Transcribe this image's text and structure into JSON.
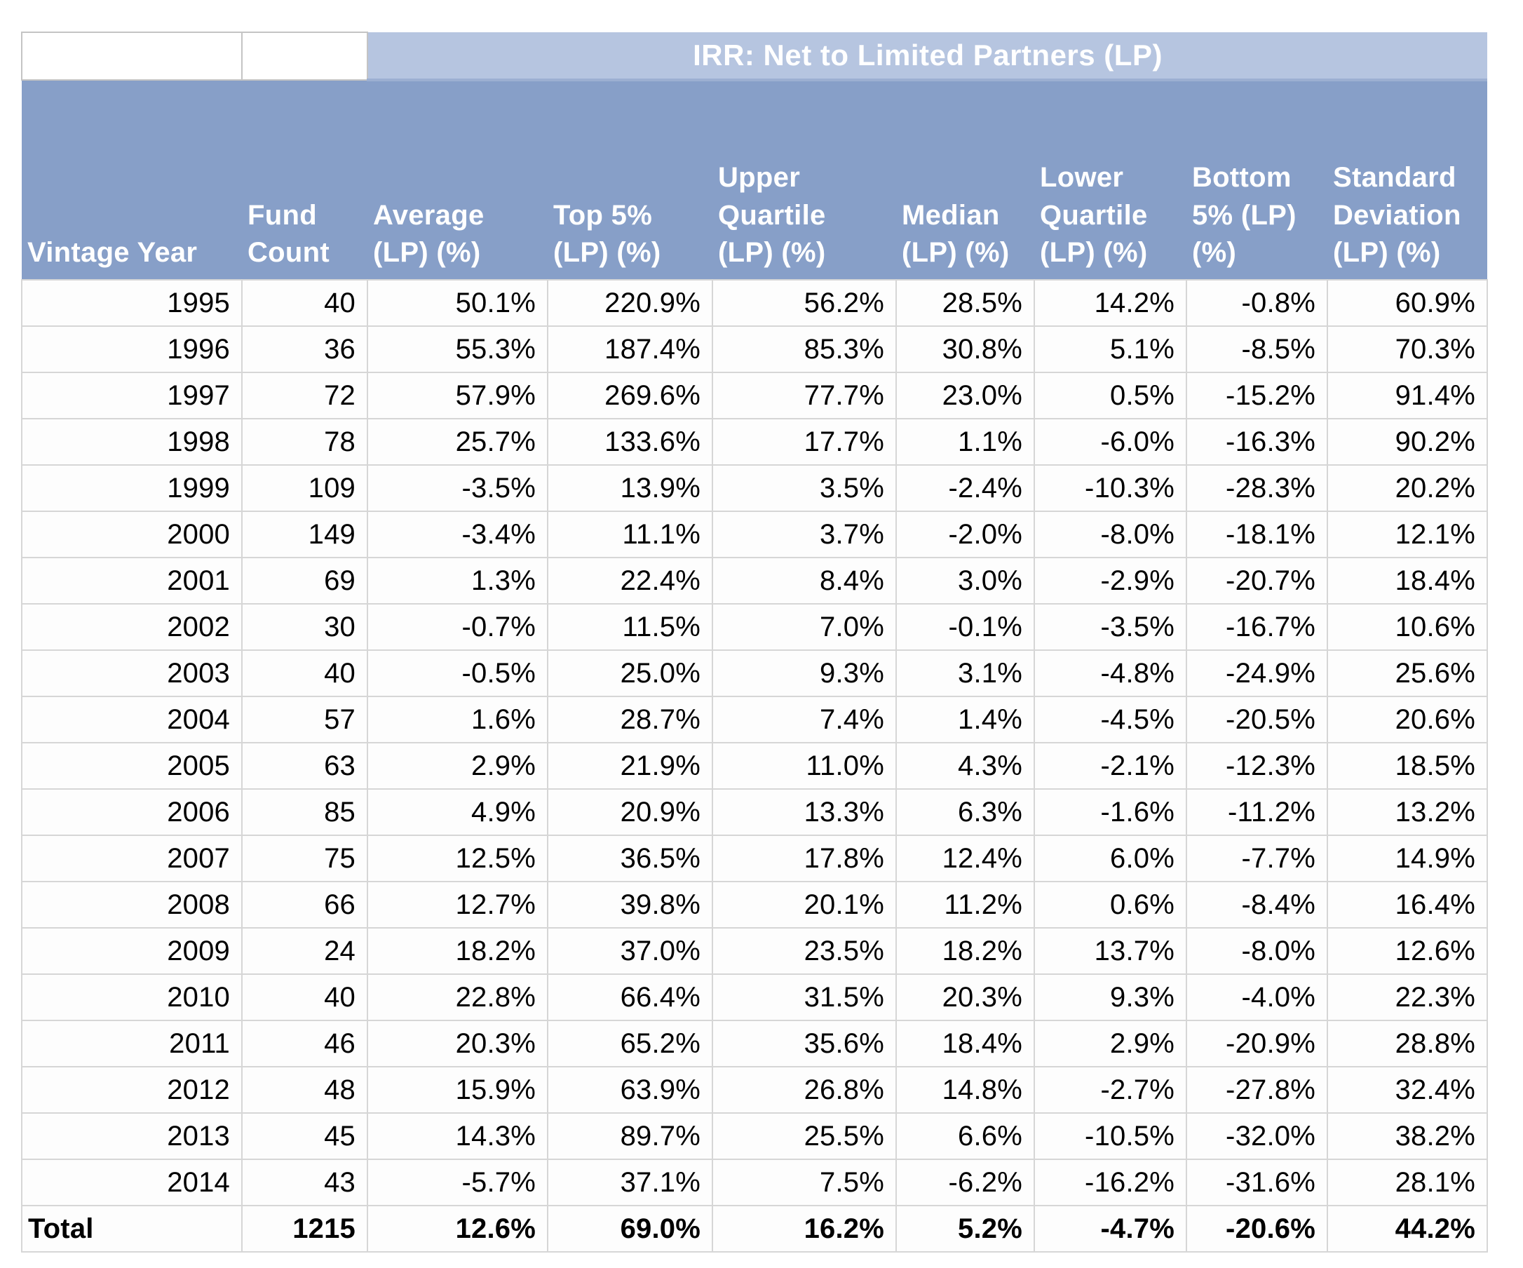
{
  "table": {
    "group_header": "IRR: Net to Limited Partners (LP)",
    "columns": [
      "Vintage Year",
      "Fund\nCount",
      "Average\n(LP) (%)",
      "Top 5%\n(LP) (%)",
      "Upper\nQuartile\n(LP) (%)",
      "Median\n(LP) (%)",
      "Lower\nQuartile\n(LP) (%)",
      "Bottom\n5% (LP)\n(%)",
      "Standard\nDeviation\n(LP) (%)"
    ],
    "rows": [
      [
        "1995",
        "40",
        "50.1%",
        "220.9%",
        "56.2%",
        "28.5%",
        "14.2%",
        "-0.8%",
        "60.9%"
      ],
      [
        "1996",
        "36",
        "55.3%",
        "187.4%",
        "85.3%",
        "30.8%",
        "5.1%",
        "-8.5%",
        "70.3%"
      ],
      [
        "1997",
        "72",
        "57.9%",
        "269.6%",
        "77.7%",
        "23.0%",
        "0.5%",
        "-15.2%",
        "91.4%"
      ],
      [
        "1998",
        "78",
        "25.7%",
        "133.6%",
        "17.7%",
        "1.1%",
        "-6.0%",
        "-16.3%",
        "90.2%"
      ],
      [
        "1999",
        "109",
        "-3.5%",
        "13.9%",
        "3.5%",
        "-2.4%",
        "-10.3%",
        "-28.3%",
        "20.2%"
      ],
      [
        "2000",
        "149",
        "-3.4%",
        "11.1%",
        "3.7%",
        "-2.0%",
        "-8.0%",
        "-18.1%",
        "12.1%"
      ],
      [
        "2001",
        "69",
        "1.3%",
        "22.4%",
        "8.4%",
        "3.0%",
        "-2.9%",
        "-20.7%",
        "18.4%"
      ],
      [
        "2002",
        "30",
        "-0.7%",
        "11.5%",
        "7.0%",
        "-0.1%",
        "-3.5%",
        "-16.7%",
        "10.6%"
      ],
      [
        "2003",
        "40",
        "-0.5%",
        "25.0%",
        "9.3%",
        "3.1%",
        "-4.8%",
        "-24.9%",
        "25.6%"
      ],
      [
        "2004",
        "57",
        "1.6%",
        "28.7%",
        "7.4%",
        "1.4%",
        "-4.5%",
        "-20.5%",
        "20.6%"
      ],
      [
        "2005",
        "63",
        "2.9%",
        "21.9%",
        "11.0%",
        "4.3%",
        "-2.1%",
        "-12.3%",
        "18.5%"
      ],
      [
        "2006",
        "85",
        "4.9%",
        "20.9%",
        "13.3%",
        "6.3%",
        "-1.6%",
        "-11.2%",
        "13.2%"
      ],
      [
        "2007",
        "75",
        "12.5%",
        "36.5%",
        "17.8%",
        "12.4%",
        "6.0%",
        "-7.7%",
        "14.9%"
      ],
      [
        "2008",
        "66",
        "12.7%",
        "39.8%",
        "20.1%",
        "11.2%",
        "0.6%",
        "-8.4%",
        "16.4%"
      ],
      [
        "2009",
        "24",
        "18.2%",
        "37.0%",
        "23.5%",
        "18.2%",
        "13.7%",
        "-8.0%",
        "12.6%"
      ],
      [
        "2010",
        "40",
        "22.8%",
        "66.4%",
        "31.5%",
        "20.3%",
        "9.3%",
        "-4.0%",
        "22.3%"
      ],
      [
        "2011",
        "46",
        "20.3%",
        "65.2%",
        "35.6%",
        "18.4%",
        "2.9%",
        "-20.9%",
        "28.8%"
      ],
      [
        "2012",
        "48",
        "15.9%",
        "63.9%",
        "26.8%",
        "14.8%",
        "-2.7%",
        "-27.8%",
        "32.4%"
      ],
      [
        "2013",
        "45",
        "14.3%",
        "89.7%",
        "25.5%",
        "6.6%",
        "-10.5%",
        "-32.0%",
        "38.2%"
      ],
      [
        "2014",
        "43",
        "-5.7%",
        "37.1%",
        "7.5%",
        "-6.2%",
        "-16.2%",
        "-31.6%",
        "28.1%"
      ]
    ],
    "total_row": [
      "Total",
      "1215",
      "12.6%",
      "69.0%",
      "16.2%",
      "5.2%",
      "-4.7%",
      "-20.6%",
      "44.2%"
    ],
    "colors": {
      "group_header_bg": "#b6c5e0",
      "column_header_bg": "#879fc8",
      "header_text": "#ffffff",
      "cell_bg": "#fdfdfd",
      "grid_line": "#d6d6d6",
      "data_text": "#000000"
    }
  }
}
